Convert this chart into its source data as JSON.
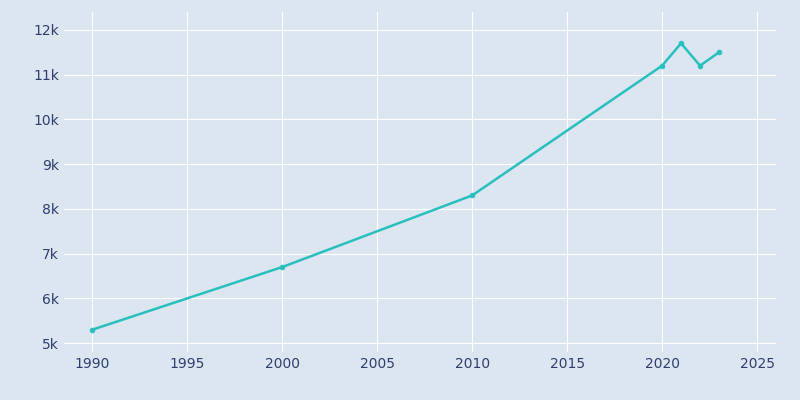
{
  "years": [
    1990,
    2000,
    2010,
    2020,
    2021,
    2022,
    2023
  ],
  "population": [
    5300,
    6700,
    8300,
    11200,
    11700,
    11200,
    11500
  ],
  "line_color": "#2abfbf",
  "background_color": "#dce6f0",
  "plot_bg_color": "#dce6f0",
  "grid_color": "#ffffff",
  "tick_color": "#2e3e6e",
  "ylim": [
    4800,
    12400
  ],
  "xlim": [
    1988.5,
    2026
  ],
  "yticks": [
    5000,
    6000,
    7000,
    8000,
    9000,
    10000,
    11000,
    12000
  ],
  "ytick_labels": [
    "5k",
    "6k",
    "7k",
    "8k",
    "9k",
    "10k",
    "11k",
    "12k"
  ],
  "xticks": [
    1990,
    1995,
    2000,
    2005,
    2010,
    2015,
    2020,
    2025
  ],
  "line_width": 1.8
}
